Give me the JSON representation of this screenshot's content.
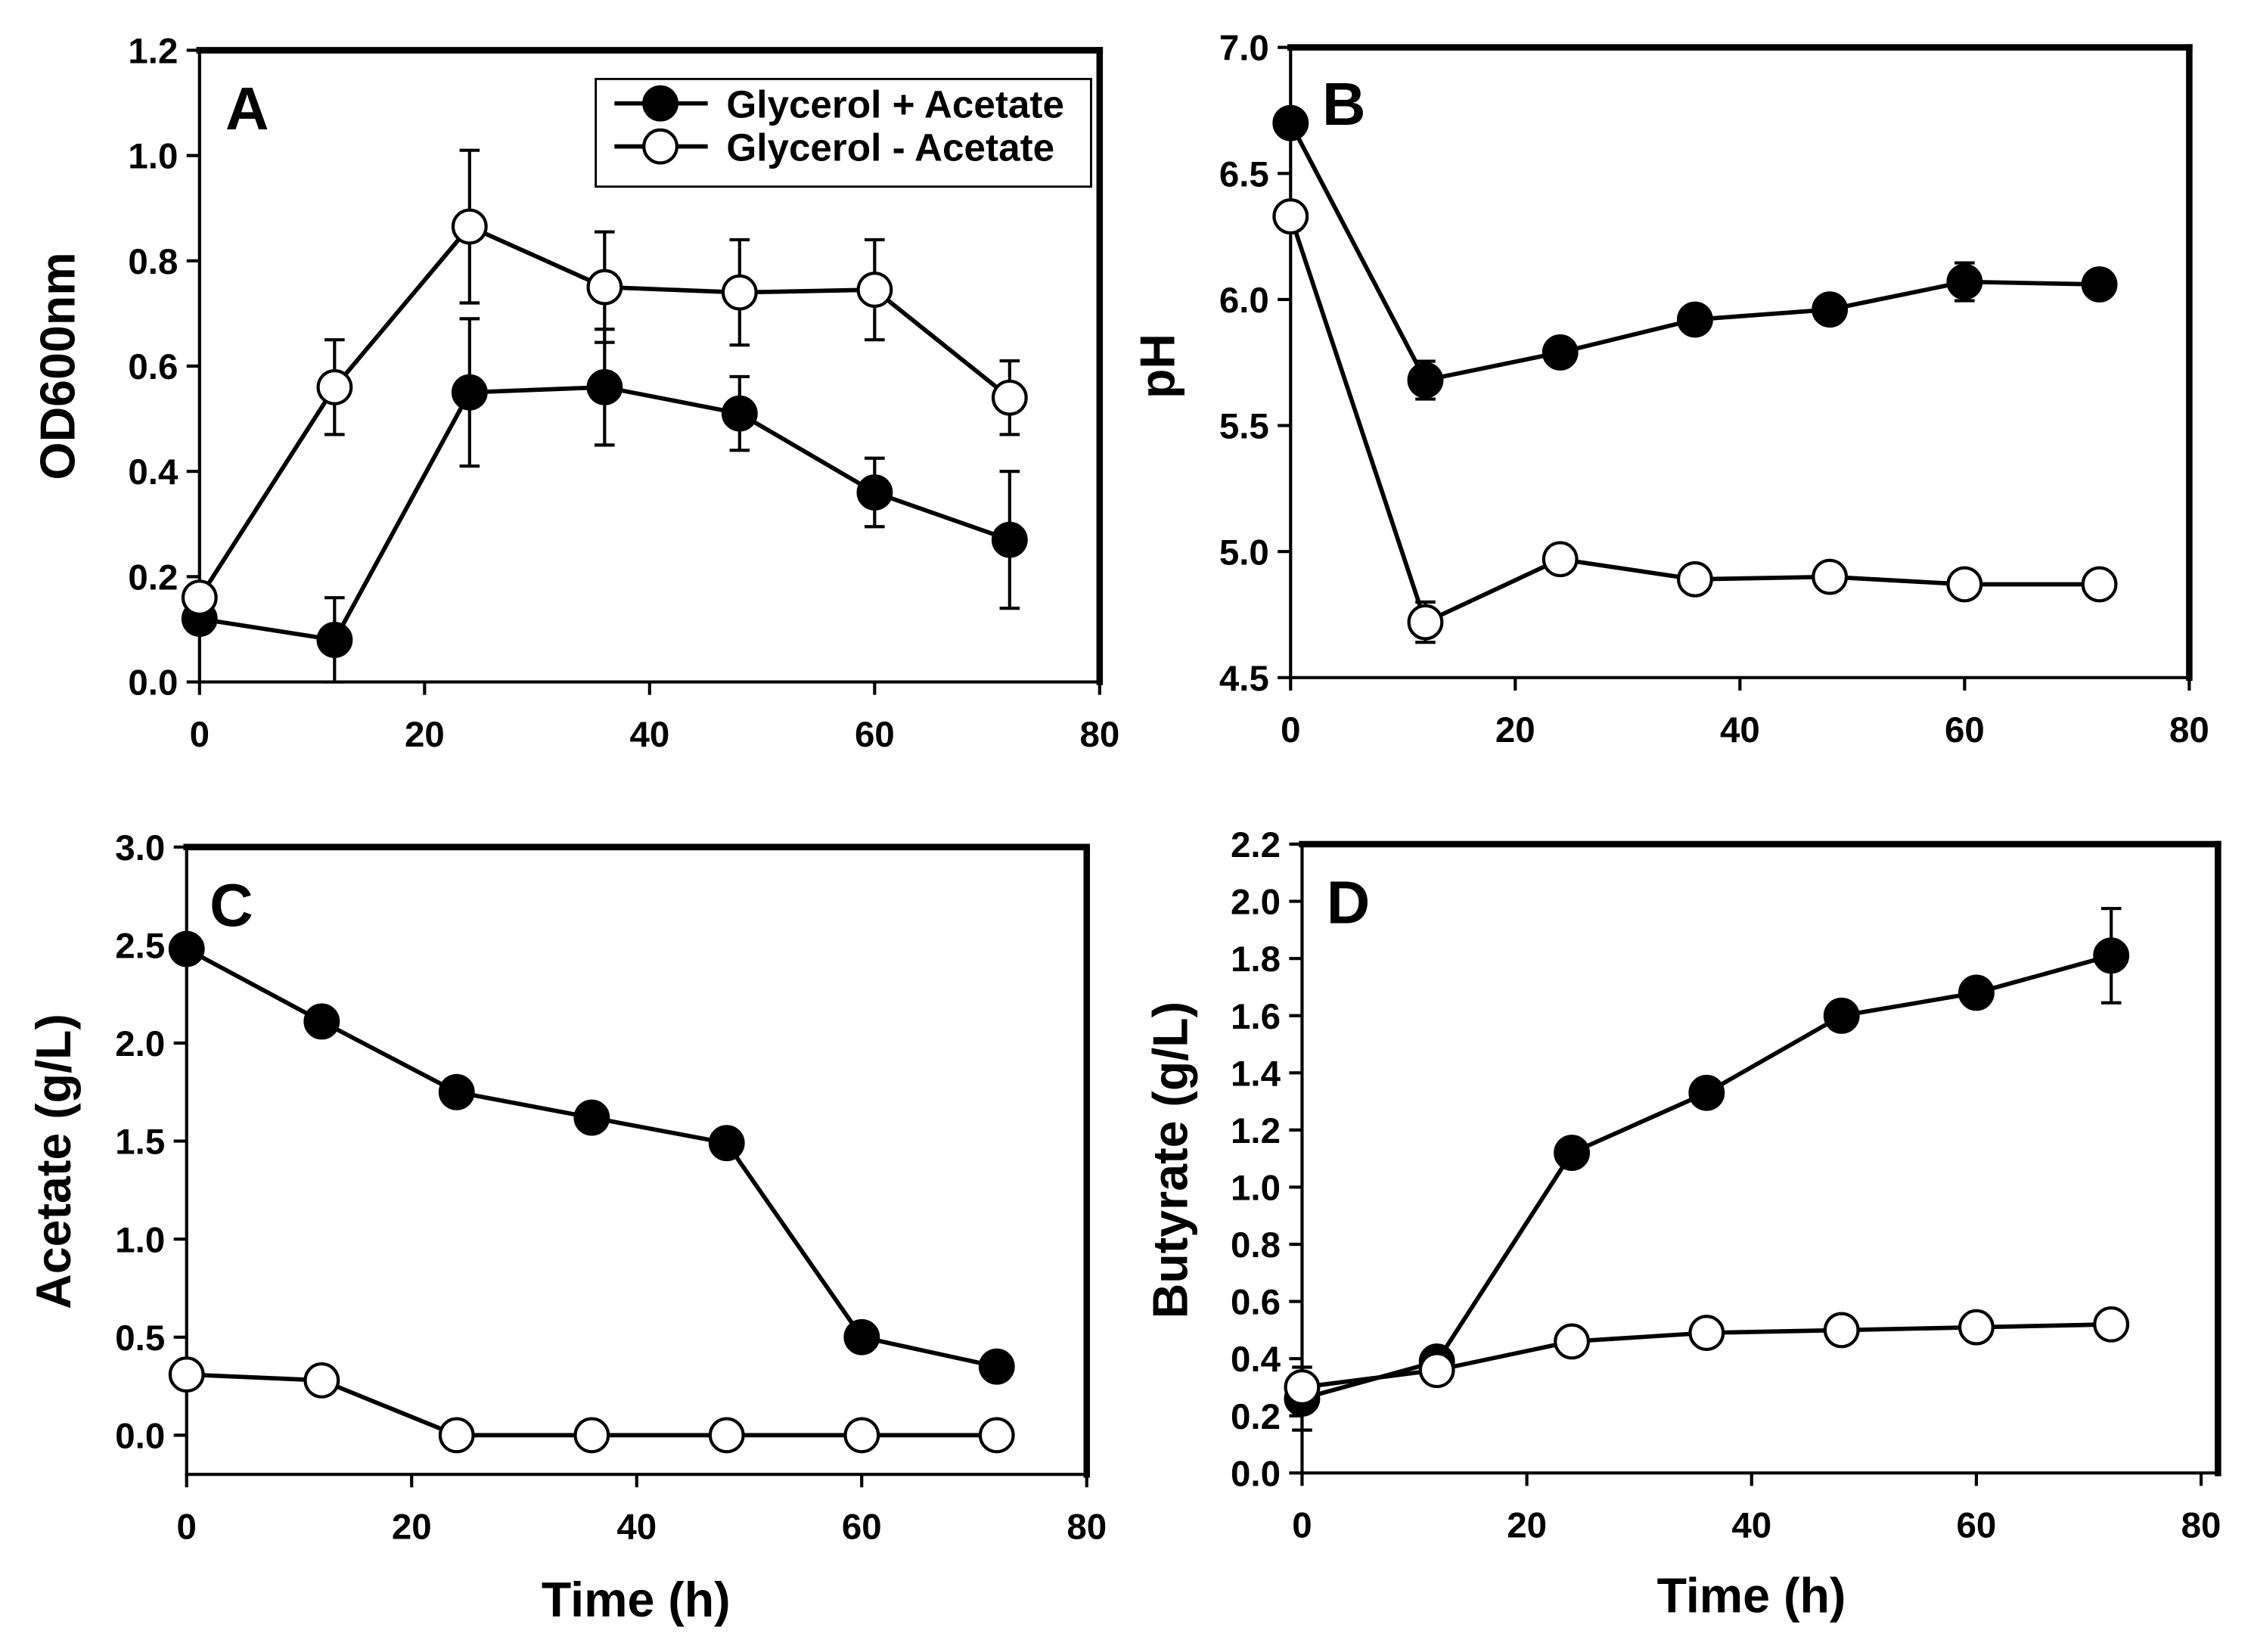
{
  "colors": {
    "ink": "#000000",
    "background": "#ffffff"
  },
  "chart_data": [
    {
      "panel": "A",
      "type": "line",
      "title": "",
      "xlabel": "",
      "ylabel": "OD600nm",
      "xlim": [
        0,
        80
      ],
      "ylim": [
        0,
        1.2
      ],
      "xticks": [
        "0",
        "20",
        "40",
        "60",
        "80"
      ],
      "yticks": [
        "0.0",
        "0.2",
        "0.4",
        "0.6",
        "0.8",
        "1.0",
        "1.2"
      ],
      "grid": false,
      "legend": {
        "position": "top-right"
      },
      "series": [
        {
          "name": "Glycerol + Acetate",
          "marker_fill": "#000000",
          "x": [
            0,
            12,
            24,
            36,
            48,
            60,
            72
          ],
          "y": [
            0.12,
            0.08,
            0.55,
            0.56,
            0.51,
            0.36,
            0.27
          ],
          "error": [
            0,
            0.08,
            0.14,
            0.11,
            0.07,
            0.065,
            0.13
          ]
        },
        {
          "name": "Glycerol - Acetate",
          "marker_fill": "#ffffff",
          "x": [
            0,
            12,
            24,
            36,
            48,
            60,
            72
          ],
          "y": [
            0.16,
            0.56,
            0.865,
            0.75,
            0.74,
            0.745,
            0.54
          ],
          "error": [
            0,
            0.09,
            0.145,
            0.105,
            0.1,
            0.095,
            0.07
          ]
        }
      ]
    },
    {
      "panel": "B",
      "type": "line",
      "title": "",
      "xlabel": "",
      "ylabel": "pH",
      "xlim": [
        0,
        80
      ],
      "ylim": [
        4.5,
        7.0
      ],
      "xticks": [
        "0",
        "20",
        "40",
        "60",
        "80"
      ],
      "yticks": [
        "4.5",
        "5.0",
        "5.5",
        "6.0",
        "6.5",
        "7.0"
      ],
      "grid": false,
      "series": [
        {
          "name": "Glycerol + Acetate",
          "marker_fill": "#000000",
          "x": [
            0,
            12,
            24,
            36,
            48,
            60,
            72
          ],
          "y": [
            6.7,
            5.68,
            5.79,
            5.92,
            5.96,
            6.07,
            6.06
          ],
          "error": [
            0,
            0.075,
            0,
            0,
            0,
            0.075,
            0
          ]
        },
        {
          "name": "Glycerol - Acetate",
          "marker_fill": "#ffffff",
          "x": [
            0,
            12,
            24,
            36,
            48,
            60,
            72
          ],
          "y": [
            6.33,
            4.72,
            4.97,
            4.89,
            4.9,
            4.87,
            4.87
          ],
          "error": [
            0,
            0.08,
            0,
            0,
            0,
            0,
            0
          ]
        }
      ]
    },
    {
      "panel": "C",
      "type": "line",
      "title": "",
      "xlabel": "Time (h)",
      "ylabel": "Acetate (g/L)",
      "xlim": [
        0,
        80
      ],
      "ylim": [
        -0.2,
        3.0
      ],
      "xticks": [
        "0",
        "20",
        "40",
        "60",
        "80"
      ],
      "yticks": [
        "0.0",
        "0.5",
        "1.0",
        "1.5",
        "2.0",
        "2.5",
        "3.0"
      ],
      "grid": false,
      "series": [
        {
          "name": "Glycerol + Acetate",
          "marker_fill": "#000000",
          "x": [
            0,
            12,
            24,
            36,
            48,
            60,
            72
          ],
          "y": [
            2.48,
            2.11,
            1.75,
            1.62,
            1.49,
            0.5,
            0.35
          ],
          "error": [
            0,
            0,
            0,
            0,
            0,
            0,
            0
          ]
        },
        {
          "name": "Glycerol - Acetate",
          "marker_fill": "#ffffff",
          "x": [
            0,
            12,
            24,
            36,
            48,
            60,
            72
          ],
          "y": [
            0.31,
            0.28,
            0.0,
            0.0,
            0.0,
            0.0,
            0.0
          ],
          "error": [
            0,
            0,
            0,
            0,
            0,
            0,
            0
          ]
        }
      ]
    },
    {
      "panel": "D",
      "type": "line",
      "title": "",
      "xlabel": "Time (h)",
      "ylabel": "Butyrate (g/L)",
      "xlim": [
        0,
        81.5
      ],
      "ylim": [
        0,
        2.2
      ],
      "xticks": [
        "0",
        "20",
        "40",
        "60",
        "80"
      ],
      "yticks": [
        "0.0",
        "0.2",
        "0.4",
        "0.6",
        "0.8",
        "1.0",
        "1.2",
        "1.4",
        "1.6",
        "1.8",
        "2.0",
        "2.2"
      ],
      "grid": false,
      "series": [
        {
          "name": "Glycerol + Acetate",
          "marker_fill": "#000000",
          "x": [
            0,
            12,
            24,
            36,
            48,
            60,
            72
          ],
          "y": [
            0.26,
            0.39,
            1.12,
            1.33,
            1.6,
            1.68,
            1.81
          ],
          "error": [
            0.11,
            0,
            0,
            0,
            0,
            0,
            0.165
          ]
        },
        {
          "name": "Glycerol - Acetate",
          "marker_fill": "#ffffff",
          "x": [
            0,
            12,
            24,
            36,
            48,
            60,
            72
          ],
          "y": [
            0.3,
            0.36,
            0.46,
            0.49,
            0.5,
            0.51,
            0.52
          ],
          "error": [
            0,
            0,
            0,
            0,
            0,
            0,
            0
          ]
        }
      ]
    }
  ]
}
